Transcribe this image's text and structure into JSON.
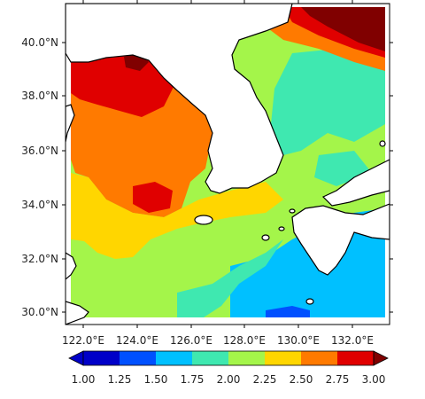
{
  "map": {
    "lat_labels": [
      "40.0°N",
      "38.0°N",
      "36.0°N",
      "34.0°N",
      "32.0°N",
      "30.0°N"
    ],
    "lon_labels": [
      "122.0°E",
      "124.0°E",
      "126.0°E",
      "128.0°E",
      "130.0°E",
      "132.0°E"
    ]
  },
  "colorbar": {
    "labels": [
      "1.00",
      "1.25",
      "1.50",
      "1.75",
      "2.00",
      "2.25",
      "2.50",
      "2.75",
      "3.00"
    ],
    "colors": [
      "#0000c8",
      "#0050ff",
      "#00c0ff",
      "#3fe8b0",
      "#a4f54a",
      "#ffd600",
      "#ff7a00",
      "#e00000",
      "#800000"
    ]
  },
  "colors": {
    "land": "#ffffff",
    "coast": "#000000",
    "frame": "#000000"
  }
}
